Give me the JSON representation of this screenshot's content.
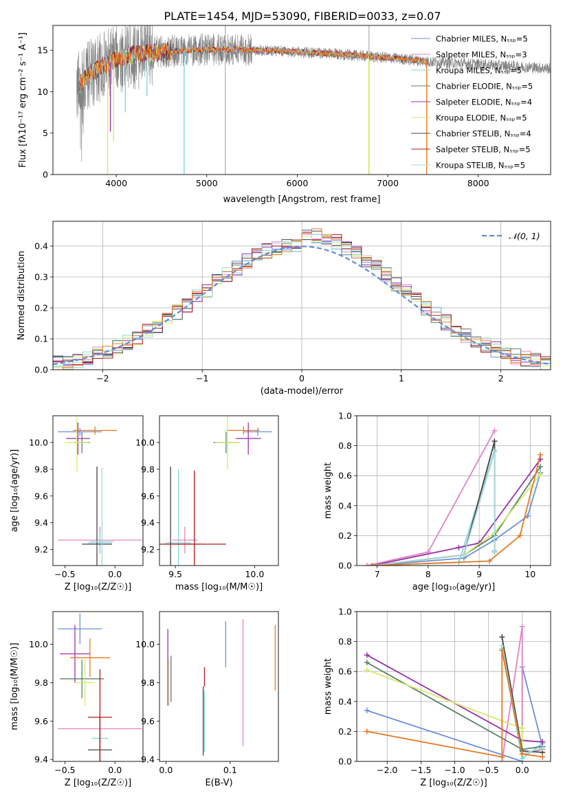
{
  "figure": {
    "title": "PLATE=1454, MJD=53090, FIBERID=0033, z=0.07"
  },
  "colors": {
    "Chabrier MILES": "#6a8fd6",
    "Salpeter MILES": "#e083c2",
    "Kroupa MILES": "#80d6dc",
    "Chabrier ELODIE": "#58806a",
    "Salpeter ELODIE": "#9a2fa8",
    "Kroupa ELODIE": "#d6ea6a",
    "Chabrier STELIB": "#444444",
    "Salpeter STELIB": "#b01818",
    "Kroupa STELIB": "#a8d6d6",
    "orange": "#e87820",
    "observed": "#808080"
  },
  "chart_data": [
    {
      "type": "line",
      "xlabel": "wavelength [Angstrom, rest frame]",
      "ylabel": "Flux [fλ10⁻¹⁷ erg cm⁻² s⁻¹ A⁻¹]",
      "xlim": [
        3300,
        8800
      ],
      "ylim": [
        0,
        18
      ],
      "xticks": [
        "4000",
        "5000",
        "6000",
        "7000",
        "8000"
      ],
      "yticks": [
        "0",
        "5",
        "10",
        "15"
      ],
      "legend_placement": "upper right",
      "legend": [
        "Chabrier MILES, N_SSP=5",
        "Salpeter MILES, N_SSP=3",
        "Kroupa MILES, N_SSP=5",
        "Chabrier ELODIE, N_SSP=5",
        "Salpeter ELODIE, N_SSP=4",
        "Kroupa ELODIE, N_SSP=5",
        "Chabrier STELIB, N_SSP=4",
        "Salpeter STELIB, N_SSP=5",
        "Kroupa STELIB, N_SSP=5"
      ],
      "continuum": {
        "x": [
          3550,
          3700,
          3800,
          3900,
          4000,
          4200,
          4500,
          4800,
          5200,
          5600,
          6000,
          6500,
          7000,
          7500,
          8000,
          8500,
          8800
        ],
        "y": [
          10.5,
          12.0,
          12.8,
          13.3,
          14.0,
          14.5,
          14.8,
          15.0,
          15.1,
          15.0,
          14.8,
          14.5,
          14.1,
          13.6,
          13.3,
          13.0,
          12.8
        ]
      },
      "model_dropouts": [
        {
          "x": 3905,
          "y": 0.0
        },
        {
          "x": 3935,
          "y": 5.2
        },
        {
          "x": 3970,
          "y": 4.0
        },
        {
          "x": 4100,
          "y": 7.5
        },
        {
          "x": 4340,
          "y": 9.5
        },
        {
          "x": 4750,
          "y": 0.0
        },
        {
          "x": 6790,
          "y": 0.0
        },
        {
          "x": 7430,
          "y": 0.0
        }
      ]
    },
    {
      "type": "line",
      "xlabel": "(data-model)/error",
      "ylabel": "Normed distribution",
      "xlim": [
        -2.5,
        2.5
      ],
      "ylim": [
        0,
        0.48
      ],
      "xticks": [
        "−2",
        "−1",
        "0",
        "1",
        "2"
      ],
      "yticks": [
        "0.0",
        "0.1",
        "0.2",
        "0.3",
        "0.4"
      ],
      "grid": true,
      "legend_placement": "upper right",
      "legend": [
        "𝒩(0, 1)"
      ],
      "bin_width": 0.1
    },
    {
      "type": "scatter",
      "xlabel": "Z [log10(Z/Z☉)]",
      "ylabel": "age  [log10(age/yr)]",
      "xlim": [
        -0.62,
        0.28
      ],
      "ylim": [
        9.08,
        10.2
      ],
      "xticks": [
        "−0.5",
        "0.0"
      ],
      "yticks": [
        "9.2",
        "9.4",
        "9.6",
        "9.8",
        "10.0"
      ],
      "points": [
        {
          "model": "Chabrier MILES",
          "x": -0.35,
          "xerr": 0.22,
          "y": 10.08,
          "yerr": 0.03
        },
        {
          "model": "Salpeter MILES",
          "x": -0.15,
          "xerr": 0.42,
          "y": 9.27,
          "yerr": 0.1
        },
        {
          "model": "Kroupa MILES",
          "x": -0.15,
          "xerr": 0.12,
          "y": 9.25,
          "yerr": 0.08
        },
        {
          "model": "Chabrier ELODIE",
          "x": -0.33,
          "xerr": 0.08,
          "y": 10.0,
          "yerr": 0.08
        },
        {
          "model": "Salpeter ELODIE",
          "x": -0.37,
          "xerr": 0.12,
          "y": 10.03,
          "yerr": 0.12
        },
        {
          "model": "Kroupa ELODIE",
          "x": -0.38,
          "xerr": 0.12,
          "y": 10.0,
          "yerr": 0.22
        },
        {
          "model": "Chabrier STELIB",
          "x": -0.18,
          "xerr": 0.15,
          "y": 9.24,
          "yerr": 0.58
        },
        {
          "model": "Kroupa STELIB",
          "x": -0.13,
          "xerr": 0.12,
          "y": 9.26,
          "yerr": 0.55
        },
        {
          "model": "orange",
          "x": -0.2,
          "xerr": 0.22,
          "y": 10.09,
          "yerr": 0.03
        }
      ]
    },
    {
      "type": "scatter",
      "xlabel": "mass [log10(M/M☉)]",
      "ylabel": "",
      "xlim": [
        9.4,
        10.15
      ],
      "ylim": [
        9.08,
        10.2
      ],
      "xticks": [
        "9.5",
        "10.0"
      ],
      "yticks": [
        "9.2",
        "9.4",
        "9.6",
        "9.8",
        "10.0"
      ],
      "points": [
        {
          "model": "Chabrier MILES",
          "x": 10.02,
          "xerr": 0.09,
          "y": 10.08,
          "yerr": 0.03
        },
        {
          "model": "Salpeter MILES",
          "x": 9.56,
          "xerr": 0.08,
          "y": 9.27,
          "yerr": 0.1
        },
        {
          "model": "Kroupa MILES",
          "x": 9.52,
          "xerr": 0.08,
          "y": 9.25,
          "yerr": 0.55
        },
        {
          "model": "Chabrier ELODIE",
          "x": 9.82,
          "xerr": 0.08,
          "y": 10.0,
          "yerr": 0.08
        },
        {
          "model": "Salpeter ELODIE",
          "x": 9.96,
          "xerr": 0.08,
          "y": 10.03,
          "yerr": 0.12
        },
        {
          "model": "Kroupa ELODIE",
          "x": 9.83,
          "xerr": 0.08,
          "y": 10.0,
          "yerr": 0.2
        },
        {
          "model": "Chabrier STELIB",
          "x": 9.47,
          "xerr": 0.2,
          "y": 9.24,
          "yerr": 0.58
        },
        {
          "model": "Salpeter STELIB",
          "x": 9.62,
          "xerr": 0.2,
          "y": 9.24,
          "yerr": 0.55
        },
        {
          "model": "orange",
          "x": 9.93,
          "xerr": 0.1,
          "y": 10.09,
          "yerr": 0.03
        }
      ]
    },
    {
      "type": "line",
      "xlabel": "age  [log10(age/yr)]",
      "ylabel": "mass weight",
      "xlim": [
        6.6,
        10.4
      ],
      "ylim": [
        0,
        1.0
      ],
      "xticks": [
        "7",
        "8",
        "9",
        "10"
      ],
      "yticks": [
        "0.0",
        "0.2",
        "0.4",
        "0.6",
        "0.8",
        "1.0"
      ],
      "grid": true,
      "series": [
        {
          "model": "Chabrier MILES",
          "x": [
            6.9,
            8.7,
            9.3,
            9.95,
            10.2
          ],
          "y": [
            0.0,
            0.05,
            0.17,
            0.33,
            0.62
          ]
        },
        {
          "model": "Salpeter MILES",
          "x": [
            6.8,
            8.0,
            9.3
          ],
          "y": [
            0.0,
            0.09,
            0.9
          ]
        },
        {
          "model": "Kroupa MILES",
          "x": [
            6.9,
            8.6,
            9.3,
            9.3
          ],
          "y": [
            0.0,
            0.02,
            0.77,
            0.1
          ]
        },
        {
          "model": "Chabrier ELODIE",
          "x": [
            6.9,
            8.7,
            9.3,
            10.2
          ],
          "y": [
            0.0,
            0.07,
            0.2,
            0.66
          ]
        },
        {
          "model": "Salpeter ELODIE",
          "x": [
            6.9,
            8.6,
            9.0,
            10.2
          ],
          "y": [
            0.0,
            0.12,
            0.15,
            0.71
          ]
        },
        {
          "model": "Kroupa ELODIE",
          "x": [
            6.9,
            8.7,
            9.3,
            10.2
          ],
          "y": [
            0.0,
            0.07,
            0.22,
            0.61
          ]
        },
        {
          "model": "Chabrier STELIB",
          "x": [
            6.9,
            8.7,
            9.3,
            9.3
          ],
          "y": [
            0.0,
            0.07,
            0.83,
            0.09
          ]
        },
        {
          "model": "Kroupa STELIB",
          "x": [
            6.9,
            8.7,
            9.3,
            9.3
          ],
          "y": [
            0.0,
            0.07,
            0.76,
            0.09
          ]
        },
        {
          "model": "orange",
          "x": [
            6.9,
            9.2,
            9.8,
            10.2
          ],
          "y": [
            0.0,
            0.03,
            0.2,
            0.74
          ]
        }
      ]
    },
    {
      "type": "scatter",
      "xlabel": "Z [log10(Z/Z☉)]",
      "ylabel": "mass [log10(M/M☉)]",
      "xlim": [
        -0.62,
        0.28
      ],
      "ylim": [
        9.39,
        10.17
      ],
      "xticks": [
        "−0.5",
        "0.0"
      ],
      "yticks": [
        "9.4",
        "9.6",
        "9.8",
        "10.0"
      ],
      "points": [
        {
          "model": "Chabrier MILES",
          "x": -0.35,
          "xerr": 0.22,
          "y": 10.08,
          "yerr": 0.08
        },
        {
          "model": "Salpeter MILES",
          "x": -0.15,
          "xerr": 0.42,
          "y": 9.56,
          "yerr": 0.08
        },
        {
          "model": "Kroupa MILES",
          "x": -0.15,
          "xerr": 0.08,
          "y": 9.51,
          "yerr": 0.08
        },
        {
          "model": "Chabrier ELODIE",
          "x": -0.33,
          "xerr": 0.22,
          "y": 9.82,
          "yerr": 0.1
        },
        {
          "model": "Salpeter ELODIE",
          "x": -0.4,
          "xerr": 0.15,
          "y": 9.95,
          "yerr": 0.15
        },
        {
          "model": "Kroupa ELODIE",
          "x": -0.3,
          "xerr": 0.1,
          "y": 9.8,
          "yerr": 0.12
        },
        {
          "model": "Chabrier STELIB",
          "x": -0.15,
          "xerr": 0.12,
          "y": 9.45,
          "yerr": 0.18
        },
        {
          "model": "Salpeter STELIB",
          "x": -0.15,
          "xerr": 0.12,
          "y": 9.62,
          "yerr": 0.25
        },
        {
          "model": "orange",
          "x": -0.25,
          "xerr": 0.2,
          "y": 9.93,
          "yerr": 0.1
        }
      ]
    },
    {
      "type": "scatter",
      "xlabel": "E(B-V)",
      "ylabel": "",
      "xlim": [
        -0.01,
        0.175
      ],
      "ylim": [
        9.39,
        10.17
      ],
      "xticks": [
        "0.0",
        "0.1"
      ],
      "yticks": [
        "9.4",
        "9.6",
        "9.8",
        "10.0"
      ],
      "points": [
        {
          "model": "Salpeter ELODIE",
          "x": 0.003,
          "y": 9.88,
          "yerr": 0.2
        },
        {
          "model": "Kroupa ELODIE",
          "x": 0.005,
          "y": 9.8,
          "yerr": 0.12
        },
        {
          "model": "Chabrier ELODIE",
          "x": 0.008,
          "y": 9.82,
          "yerr": 0.12
        },
        {
          "model": "Chabrier STELIB",
          "x": 0.058,
          "y": 9.6,
          "yerr": 0.18
        },
        {
          "model": "Kroupa MILES",
          "x": 0.06,
          "y": 9.6,
          "yerr": 0.16
        },
        {
          "model": "Salpeter STELIB",
          "x": 0.06,
          "y": 9.83,
          "yerr": 0.05
        },
        {
          "model": "Chabrier MILES",
          "x": 0.093,
          "y": 10.0,
          "yerr": 0.12
        },
        {
          "model": "Salpeter MILES",
          "x": 0.12,
          "y": 9.8,
          "yerr": 0.33
        },
        {
          "model": "orange",
          "x": 0.17,
          "y": 9.93,
          "yerr": 0.17
        }
      ]
    },
    {
      "type": "line",
      "xlabel": "Z [log10(Z/Z☉)]",
      "ylabel": "mass weight",
      "xlim": [
        -2.45,
        0.42
      ],
      "ylim": [
        0,
        1.0
      ],
      "xticks": [
        "−2.0",
        "−1.5",
        "−1.0",
        "−0.5",
        "0.0"
      ],
      "yticks": [
        "0.0",
        "0.2",
        "0.4",
        "0.6",
        "0.8",
        "1.0"
      ],
      "grid": true,
      "series": [
        {
          "model": "Chabrier MILES",
          "x": [
            -2.3,
            0.0,
            0.0,
            0.3
          ],
          "y": [
            0.34,
            0.0,
            0.63,
            0.1
          ]
        },
        {
          "model": "Salpeter MILES",
          "x": [
            -0.3,
            0.0,
            0.0,
            0.3
          ],
          "y": [
            0.0,
            0.9,
            0.05,
            0.08
          ]
        },
        {
          "model": "Kroupa MILES",
          "x": [
            -0.3,
            0.0,
            0.3
          ],
          "y": [
            0.75,
            0.02,
            0.12
          ]
        },
        {
          "model": "Chabrier ELODIE",
          "x": [
            -2.3,
            0.0,
            0.3
          ],
          "y": [
            0.66,
            0.08,
            0.1
          ]
        },
        {
          "model": "Salpeter ELODIE",
          "x": [
            -2.3,
            0.0,
            0.3
          ],
          "y": [
            0.71,
            0.14,
            0.13
          ]
        },
        {
          "model": "Kroupa ELODIE",
          "x": [
            -2.3,
            0.0,
            0.0,
            0.3
          ],
          "y": [
            0.61,
            0.22,
            0.05,
            0.09
          ]
        },
        {
          "model": "Chabrier STELIB",
          "x": [
            -0.3,
            0.0,
            0.3
          ],
          "y": [
            0.83,
            0.07,
            0.06
          ]
        },
        {
          "model": "Kroupa STELIB",
          "x": [
            -0.3,
            0.0,
            0.3
          ],
          "y": [
            0.77,
            0.05,
            0.09
          ]
        },
        {
          "model": "orange",
          "x": [
            -2.3,
            -0.3,
            -0.3,
            0.0,
            0.3
          ],
          "y": [
            0.2,
            0.03,
            0.74,
            0.05,
            0.03
          ]
        }
      ]
    }
  ]
}
